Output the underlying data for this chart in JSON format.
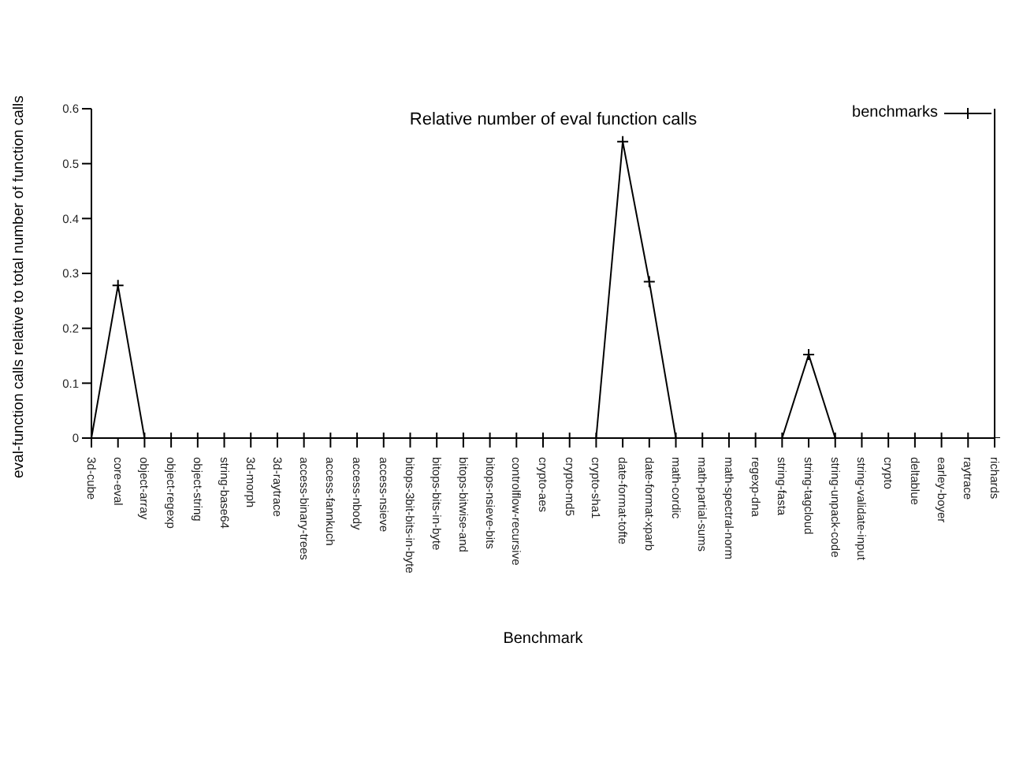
{
  "chart_data": {
    "type": "line",
    "title": "Relative number of eval function calls",
    "xlabel": "Benchmark",
    "ylabel": "eval-function calls relative to total number of function calls",
    "categories": [
      "3d-cube",
      "core-eval",
      "object-array",
      "object-regexp",
      "object-string",
      "string-base64",
      "3d-morph",
      "3d-raytrace",
      "access-binary-trees",
      "access-fannkuch",
      "access-nbody",
      "access-nsieve",
      "bitops-3bit-bits-in-byte",
      "bitops-bits-in-byte",
      "bitops-bitwise-and",
      "bitops-nsieve-bits",
      "controlflow-recursive",
      "crypto-aes",
      "crypto-md5",
      "crypto-sha1",
      "date-format-tofte",
      "date-format-xparb",
      "math-cordic",
      "math-partial-sums",
      "math-spectral-norm",
      "regexp-dna",
      "string-fasta",
      "string-tagcloud",
      "string-unpack-code",
      "string-validate-input",
      "crypto",
      "deltablue",
      "earley-boyer",
      "raytrace",
      "richards"
    ],
    "series": [
      {
        "name": "benchmarks",
        "color": "#000000",
        "values": [
          0,
          0.278,
          0,
          0,
          0,
          0,
          0,
          0,
          0,
          0,
          0,
          0,
          0,
          0,
          0,
          0,
          0,
          0,
          0,
          0,
          0.54,
          0.285,
          0,
          0,
          0,
          0,
          0,
          0.152,
          0,
          0,
          0,
          0,
          0,
          0,
          0
        ]
      }
    ],
    "ylim": [
      0,
      0.6
    ],
    "yticks": [
      0,
      0.1,
      0.2,
      0.3,
      0.4,
      0.5,
      0.6
    ],
    "grid": false,
    "legend": "top right",
    "marker": "cross",
    "line_style": "solid"
  }
}
